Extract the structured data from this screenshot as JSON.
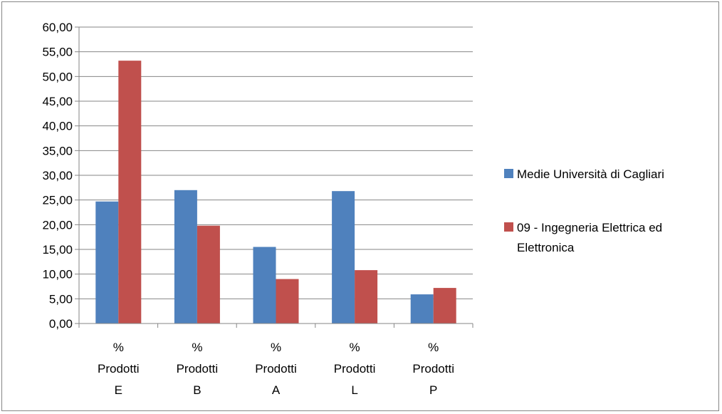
{
  "chart_data": {
    "type": "bar",
    "categories": [
      [
        "%",
        "Prodotti",
        "E"
      ],
      [
        "%",
        "Prodotti",
        "B"
      ],
      [
        "%",
        "Prodotti",
        "A"
      ],
      [
        "%",
        "Prodotti",
        "L"
      ],
      [
        "%",
        "Prodotti",
        "P"
      ]
    ],
    "series": [
      {
        "name": "Medie Università di Cagliari",
        "color": "#4F81BD",
        "values": [
          24.7,
          27.0,
          15.5,
          26.8,
          5.9
        ]
      },
      {
        "name_lines": [
          "09 - Ingegneria Elettrica ed",
          "Elettronica"
        ],
        "color": "#C0504D",
        "values": [
          53.2,
          19.8,
          9.0,
          10.8,
          7.2
        ]
      }
    ],
    "y_ticks": [
      "0,00",
      "5,00",
      "10,00",
      "15,00",
      "20,00",
      "25,00",
      "30,00",
      "35,00",
      "40,00",
      "45,00",
      "50,00",
      "55,00",
      "60,00"
    ],
    "ylim": [
      0,
      60
    ],
    "title": "",
    "xlabel": "",
    "ylabel": "",
    "grid": true,
    "gridline_color": "#868686",
    "legend_position": "right"
  }
}
